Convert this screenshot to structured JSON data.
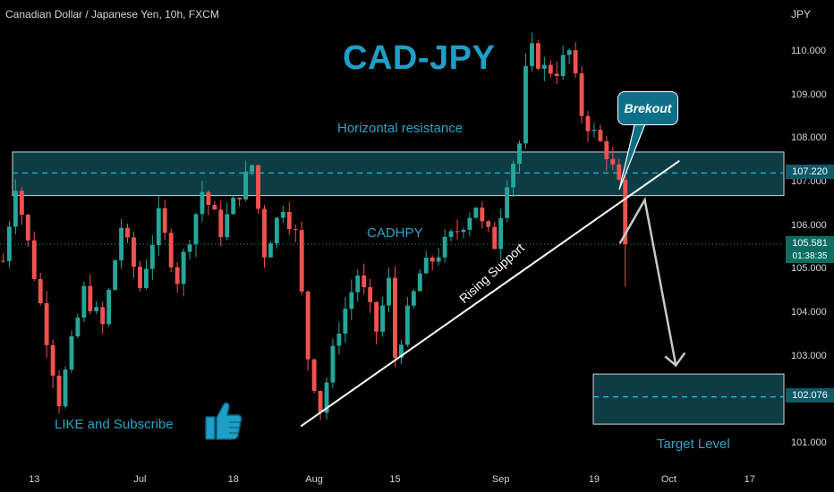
{
  "header": {
    "symbol_line": "Canadian Dollar / Japanese Yen, 10h, FXCM",
    "currency": "JPY"
  },
  "annotations": {
    "title": "CAD-JPY",
    "horizontal_resistance": "Horizontal resistance",
    "pair_label": "CADHPY",
    "rising_support": "Rising Support",
    "breakout": "Brekout",
    "like_subscribe": "LIKE and Subscribe",
    "target_level": "Target Level"
  },
  "price_tags": {
    "resistance_price": "107.220",
    "last_price": "105.581",
    "countdown": "01:38:35",
    "target_price": "102.076"
  },
  "colors": {
    "up_candle": "#26a69a",
    "down_candle": "#ef5350",
    "zone_fill": "#0d3d44",
    "accent_text": "#1e9fc7",
    "background": "#000000"
  },
  "icons": {
    "thumbs_up": "thumbs-up-icon"
  },
  "chart_data": {
    "type": "candlestick",
    "title": "CAD-JPY",
    "ylim": [
      100.6,
      111.2
    ],
    "y_ticks": [
      "110.000",
      "109.000",
      "108.000",
      "107.000",
      "106.000",
      "105.000",
      "104.000",
      "103.000",
      "102.000",
      "101.000"
    ],
    "y_tick_values": [
      110,
      109,
      108,
      107,
      106,
      105,
      104,
      103,
      102,
      101
    ],
    "x_ticks": [
      "13",
      "Jul",
      "18",
      "Aug",
      "15",
      "Sep",
      "19",
      "Oct",
      "17"
    ],
    "x_tick_index": [
      5,
      22,
      37,
      50,
      63,
      80,
      95,
      107,
      120
    ],
    "candles_count": 126,
    "anchors": [
      [
        0,
        105.2
      ],
      [
        2,
        107.0
      ],
      [
        6,
        104.2
      ],
      [
        9,
        102.0
      ],
      [
        13,
        104.5
      ],
      [
        16,
        103.7
      ],
      [
        19,
        106.0
      ],
      [
        22,
        104.6
      ],
      [
        25,
        106.2
      ],
      [
        28,
        104.8
      ],
      [
        32,
        106.8
      ],
      [
        35,
        105.9
      ],
      [
        40,
        107.4
      ],
      [
        42,
        105.4
      ],
      [
        45,
        106.5
      ],
      [
        47,
        105.8
      ],
      [
        49,
        103.0
      ],
      [
        51,
        101.8
      ],
      [
        54,
        103.7
      ],
      [
        57,
        104.9
      ],
      [
        60,
        103.6
      ],
      [
        62,
        104.7
      ],
      [
        63,
        103.0
      ],
      [
        67,
        104.9
      ],
      [
        70,
        105.4
      ],
      [
        73,
        105.9
      ],
      [
        76,
        106.5
      ],
      [
        77,
        106.0
      ],
      [
        79,
        105.6
      ],
      [
        81,
        107.1
      ],
      [
        83,
        107.9
      ],
      [
        84,
        109.5
      ],
      [
        85,
        110.0
      ],
      [
        87,
        109.6
      ],
      [
        89,
        109.6
      ],
      [
        91,
        110.0
      ],
      [
        93,
        108.6
      ],
      [
        95,
        108.1
      ],
      [
        97,
        107.7
      ],
      [
        98,
        107.3
      ],
      [
        99,
        106.9
      ],
      [
        100,
        105.8
      ]
    ],
    "resistance_zone": [
      106.7,
      107.7
    ],
    "resistance_line": 107.22,
    "last_price": 105.581,
    "target_zone": [
      101.45,
      102.6
    ],
    "target_line": 102.076,
    "rising_support": {
      "from": [
        49,
        101.4
      ],
      "to": [
        107,
        107.5
      ]
    },
    "projection": [
      [
        100,
        105.6
      ],
      [
        104,
        106.6
      ],
      [
        109,
        102.8
      ]
    ]
  }
}
